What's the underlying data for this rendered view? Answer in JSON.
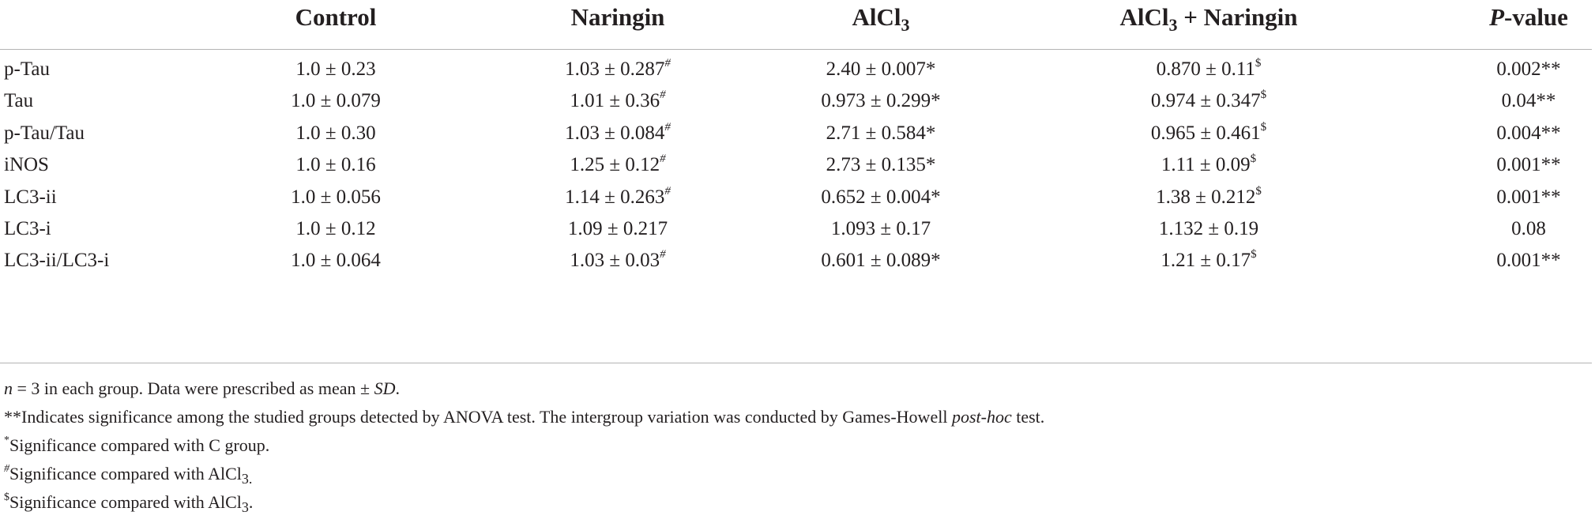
{
  "table": {
    "headers": {
      "control": "Control",
      "naringin": "Naringin",
      "alcl3_main": "AlCl",
      "alcl3_sub": "3",
      "combo_main": "AlCl",
      "combo_sub": "3",
      "combo_rest": " + Naringin",
      "p_italic": "P",
      "p_rest": "-value"
    },
    "rows": [
      {
        "label": "p-Tau",
        "control": "1.0 ± 0.23",
        "naringin": "1.03 ± 0.287",
        "naringin_mark": "#",
        "alcl3": "2.40 ± 0.007*",
        "combo": "0.870 ± 0.11",
        "combo_mark": "$",
        "p": "0.002**"
      },
      {
        "label": "Tau",
        "control": "1.0 ± 0.079",
        "naringin": "1.01 ± 0.36",
        "naringin_mark": "#",
        "alcl3": "0.973 ± 0.299*",
        "combo": "0.974 ± 0.347",
        "combo_mark": "$",
        "p": "0.04**"
      },
      {
        "label": "p-Tau/Tau",
        "control": "1.0 ± 0.30",
        "naringin": "1.03 ± 0.084",
        "naringin_mark": "#",
        "alcl3": "2.71 ± 0.584*",
        "combo": "0.965 ± 0.461",
        "combo_mark": "$",
        "p": "0.004**"
      },
      {
        "label": "iNOS",
        "control": "1.0 ± 0.16",
        "naringin": "1.25 ± 0.12",
        "naringin_mark": "#",
        "alcl3": "2.73 ± 0.135*",
        "combo": "1.11 ± 0.09",
        "combo_mark": "$",
        "p": "0.001**"
      },
      {
        "label": "LC3-ii",
        "control": "1.0 ± 0.056",
        "naringin": "1.14 ± 0.263",
        "naringin_mark": "#",
        "alcl3": "0.652 ± 0.004*",
        "combo": "1.38 ± 0.212",
        "combo_mark": "$",
        "p": "0.001**"
      },
      {
        "label": "LC3-i",
        "control": "1.0 ± 0.12",
        "naringin": "1.09 ± 0.217",
        "naringin_mark": "",
        "alcl3": "1.093 ± 0.17",
        "combo": "1.132 ± 0.19",
        "combo_mark": "",
        "p": "0.08"
      },
      {
        "label": "LC3-ii/LC3-i",
        "control": "1.0 ± 0.064",
        "naringin": "1.03 ± 0.03",
        "naringin_mark": "#",
        "alcl3": "0.601 ± 0.089*",
        "combo": "1.21 ± 0.17",
        "combo_mark": "$",
        "p": "0.001**"
      }
    ]
  },
  "footnotes": {
    "n_italic": "n",
    "n_rest": " = 3 in each group. Data were prescribed as mean ± ",
    "n_sd": "SD",
    "n_end": ".",
    "anova_mark": "**",
    "anova_text": "Indicates significance among the studied groups detected by ANOVA test. The intergroup variation was conducted by Games-Howell ",
    "anova_italic": "post-hoc",
    "anova_end": " test.",
    "c_mark": "*",
    "c_text": "Significance compared with C group.",
    "hash_mark": "#",
    "hash_text": "Significance compared with AlCl",
    "hash_sub": "3.",
    "dollar_mark": "$",
    "dollar_text": "Significance compared with AlCl",
    "dollar_sub": "3",
    "dollar_end": "."
  },
  "colors": {
    "text": "#231f20",
    "rule": "#b4b4b4",
    "background": "#ffffff"
  }
}
